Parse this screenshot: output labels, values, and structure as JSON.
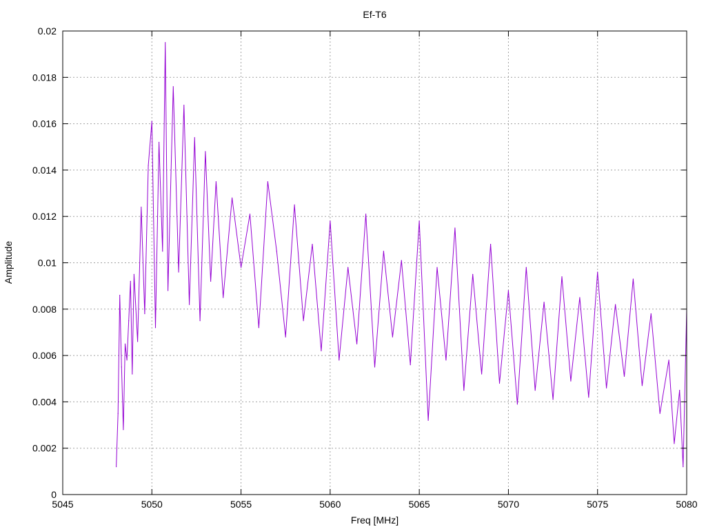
{
  "chart_data": {
    "type": "line",
    "title": "Ef-T6",
    "xlabel": "Freq [MHz]",
    "ylabel": "Amplitude",
    "xlim": [
      5045,
      5080
    ],
    "ylim": [
      0,
      0.02
    ],
    "x_ticks": [
      "5045",
      "5050",
      "5055",
      "5060",
      "5065",
      "5070",
      "5075",
      "5080"
    ],
    "y_ticks": [
      "0",
      "0.002",
      "0.004",
      "0.006",
      "0.008",
      "0.01",
      "0.012",
      "0.014",
      "0.016",
      "0.018",
      "0.02"
    ],
    "grid": true,
    "legend": "none",
    "series": [
      {
        "color": "#9400d3",
        "x": [
          5048.0,
          5048.1,
          5048.2,
          5048.3,
          5048.4,
          5048.5,
          5048.6,
          5048.7,
          5048.8,
          5048.9,
          5049.0,
          5049.2,
          5049.4,
          5049.6,
          5049.8,
          5050.0,
          5050.2,
          5050.4,
          5050.6,
          5050.75,
          5050.9,
          5051.2,
          5051.5,
          5051.8,
          5052.1,
          5052.4,
          5052.7,
          5053.0,
          5053.3,
          5053.6,
          5054.0,
          5054.5,
          5055.0,
          5055.5,
          5056.0,
          5056.5,
          5057.0,
          5057.5,
          5058.0,
          5058.5,
          5059.0,
          5059.5,
          5060.0,
          5060.5,
          5061.0,
          5061.5,
          5062.0,
          5062.5,
          5063.0,
          5063.5,
          5064.0,
          5064.5,
          5065.0,
          5065.5,
          5066.0,
          5066.5,
          5067.0,
          5067.5,
          5068.0,
          5068.5,
          5069.0,
          5069.5,
          5070.0,
          5070.5,
          5071.0,
          5071.5,
          5072.0,
          5072.5,
          5073.0,
          5073.5,
          5074.0,
          5074.5,
          5075.0,
          5075.5,
          5076.0,
          5076.5,
          5077.0,
          5077.5,
          5078.0,
          5078.5,
          5079.0,
          5079.3,
          5079.6,
          5079.8,
          5080.0
        ],
        "y": [
          0.0012,
          0.0035,
          0.0086,
          0.0055,
          0.0028,
          0.0065,
          0.0058,
          0.0075,
          0.0092,
          0.0052,
          0.0095,
          0.0066,
          0.0124,
          0.0078,
          0.0142,
          0.0161,
          0.0072,
          0.0152,
          0.0105,
          0.0195,
          0.0088,
          0.0176,
          0.0096,
          0.0168,
          0.0082,
          0.0154,
          0.0075,
          0.0148,
          0.0092,
          0.0135,
          0.0085,
          0.0128,
          0.0098,
          0.0121,
          0.0072,
          0.0135,
          0.0105,
          0.0068,
          0.0125,
          0.0075,
          0.0108,
          0.0062,
          0.0118,
          0.0058,
          0.0098,
          0.0065,
          0.0121,
          0.0055,
          0.0105,
          0.0068,
          0.0101,
          0.0056,
          0.0118,
          0.0032,
          0.0098,
          0.0058,
          0.0115,
          0.0045,
          0.0095,
          0.0052,
          0.0108,
          0.0048,
          0.0088,
          0.0039,
          0.0098,
          0.0045,
          0.0083,
          0.0041,
          0.0094,
          0.0049,
          0.0085,
          0.0042,
          0.0096,
          0.0046,
          0.0082,
          0.0051,
          0.0093,
          0.0047,
          0.0078,
          0.0035,
          0.0058,
          0.0022,
          0.0045,
          0.0012,
          0.008
        ]
      }
    ]
  }
}
